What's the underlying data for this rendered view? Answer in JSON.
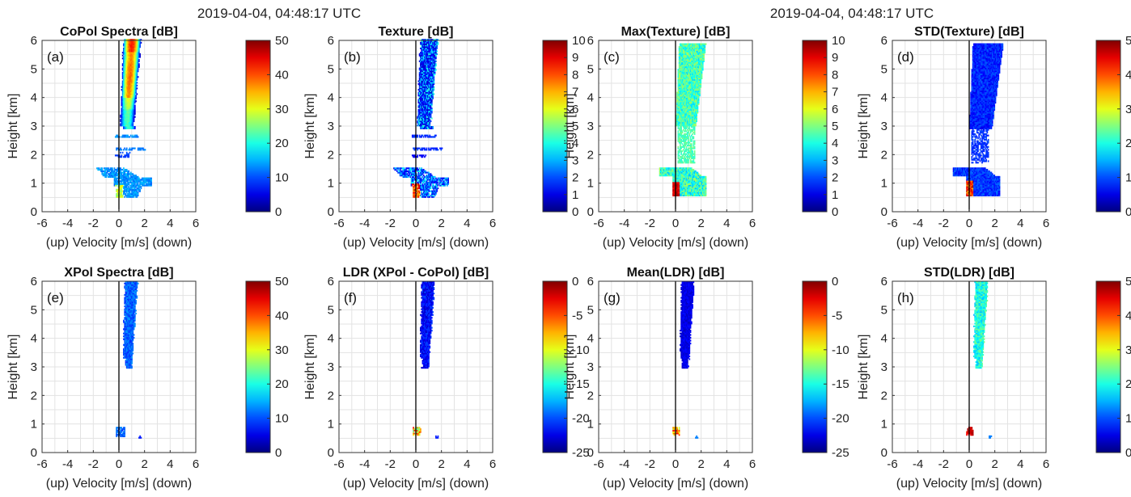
{
  "figure": {
    "suptitles": [
      "2019-04-04, 04:48:17 UTC",
      "2019-04-04, 04:48:17 UTC"
    ]
  },
  "chart_data": [
    {
      "type": "heatmap",
      "panel_label": "(a)",
      "title": "CoPol Spectra [dB]",
      "xlabel": "(up) Velocity [m/s] (down)",
      "ylabel": "Height [km]",
      "xlim": [
        -6,
        6
      ],
      "ylim": [
        0,
        6
      ],
      "xticks": [
        -6,
        -4,
        -2,
        0,
        2,
        4,
        6
      ],
      "yticks": [
        0,
        1,
        2,
        3,
        4,
        5,
        6
      ],
      "grid": true,
      "colorbar": {
        "min": 0,
        "max": 50,
        "ticks": [
          0,
          10,
          20,
          30,
          40,
          50
        ],
        "colormap": "jet"
      },
      "profile": "copol"
    },
    {
      "type": "heatmap",
      "panel_label": "(b)",
      "title": "Texture [dB]",
      "xlabel": "(up) Velocity [m/s] (down)",
      "ylabel": "Height [km]",
      "xlim": [
        -6,
        6
      ],
      "ylim": [
        0,
        6
      ],
      "xticks": [
        -6,
        -4,
        -2,
        0,
        2,
        4,
        6
      ],
      "yticks": [
        0,
        1,
        2,
        3,
        4,
        5,
        6
      ],
      "grid": true,
      "colorbar": {
        "min": 0,
        "max": 10,
        "ticks": [
          0,
          1,
          2,
          3,
          4,
          5,
          6,
          7,
          8,
          9,
          10
        ],
        "colormap": "jet"
      },
      "profile": "texture"
    },
    {
      "type": "heatmap",
      "panel_label": "(c)",
      "title": "Max(Texture) [dB]",
      "xlabel": "(up) Velocity [m/s] (down)",
      "ylabel": "Height [km]",
      "xlim": [
        -6,
        6
      ],
      "ylim": [
        0,
        6
      ],
      "xticks": [
        -6,
        -4,
        -2,
        0,
        2,
        4,
        6
      ],
      "yticks": [
        0,
        1,
        2,
        3,
        4,
        5,
        6
      ],
      "grid": true,
      "colorbar": {
        "min": 0,
        "max": 10,
        "ticks": [
          0,
          1,
          2,
          3,
          4,
          5,
          6,
          7,
          8,
          9,
          10
        ],
        "colormap": "jet"
      },
      "profile": "maxtex"
    },
    {
      "type": "heatmap",
      "panel_label": "(d)",
      "title": "STD(Texture) [dB]",
      "xlabel": "(up) Velocity [m/s] (down)",
      "ylabel": "Height [km]",
      "xlim": [
        -6,
        6
      ],
      "ylim": [
        0,
        6
      ],
      "xticks": [
        -6,
        -4,
        -2,
        0,
        2,
        4,
        6
      ],
      "yticks": [
        0,
        1,
        2,
        3,
        4,
        5,
        6
      ],
      "grid": true,
      "colorbar": {
        "min": 0,
        "max": 5,
        "ticks": [
          0,
          1,
          2,
          3,
          4,
          5
        ],
        "colormap": "jet"
      },
      "profile": "stdtex"
    },
    {
      "type": "heatmap",
      "panel_label": "(e)",
      "title": "XPol Spectra [dB]",
      "xlabel": "(up) Velocity [m/s] (down)",
      "ylabel": "Height [km]",
      "xlim": [
        -6,
        6
      ],
      "ylim": [
        0,
        6
      ],
      "xticks": [
        -6,
        -4,
        -2,
        0,
        2,
        4,
        6
      ],
      "yticks": [
        0,
        1,
        2,
        3,
        4,
        5,
        6
      ],
      "grid": true,
      "colorbar": {
        "min": 0,
        "max": 50,
        "ticks": [
          0,
          10,
          20,
          30,
          40,
          50
        ],
        "colormap": "jet"
      },
      "profile": "xpol"
    },
    {
      "type": "heatmap",
      "panel_label": "(f)",
      "title": "LDR (XPol - CoPol) [dB]",
      "xlabel": "(up) Velocity [m/s] (down)",
      "ylabel": "Height [km]",
      "xlim": [
        -6,
        6
      ],
      "ylim": [
        0,
        6
      ],
      "xticks": [
        -6,
        -4,
        -2,
        0,
        2,
        4,
        6
      ],
      "yticks": [
        0,
        1,
        2,
        3,
        4,
        5,
        6
      ],
      "grid": true,
      "colorbar": {
        "min": -25,
        "max": 0,
        "ticks": [
          -25,
          -20,
          -15,
          -10,
          -5,
          0
        ],
        "colormap": "jet"
      },
      "profile": "ldr"
    },
    {
      "type": "heatmap",
      "panel_label": "(g)",
      "title": "Mean(LDR) [dB]",
      "xlabel": "(up) Velocity [m/s] (down)",
      "ylabel": "Height [km]",
      "xlim": [
        -6,
        6
      ],
      "ylim": [
        0,
        6
      ],
      "xticks": [
        -6,
        -4,
        -2,
        0,
        2,
        4,
        6
      ],
      "yticks": [
        0,
        1,
        2,
        3,
        4,
        5,
        6
      ],
      "grid": true,
      "colorbar": {
        "min": -25,
        "max": 0,
        "ticks": [
          -25,
          -20,
          -15,
          -10,
          -5,
          0
        ],
        "colormap": "jet"
      },
      "profile": "meanldr"
    },
    {
      "type": "heatmap",
      "panel_label": "(h)",
      "title": "STD(LDR) [dB]",
      "xlabel": "(up) Velocity [m/s] (down)",
      "ylabel": "Height [km]",
      "xlim": [
        -6,
        6
      ],
      "ylim": [
        0,
        6
      ],
      "xticks": [
        -6,
        -4,
        -2,
        0,
        2,
        4,
        6
      ],
      "yticks": [
        0,
        1,
        2,
        3,
        4,
        5,
        6
      ],
      "grid": true,
      "colorbar": {
        "min": 0,
        "max": 5,
        "ticks": [
          0,
          1,
          2,
          3,
          4,
          5
        ],
        "colormap": "jet"
      },
      "profile": "stdldr"
    }
  ]
}
